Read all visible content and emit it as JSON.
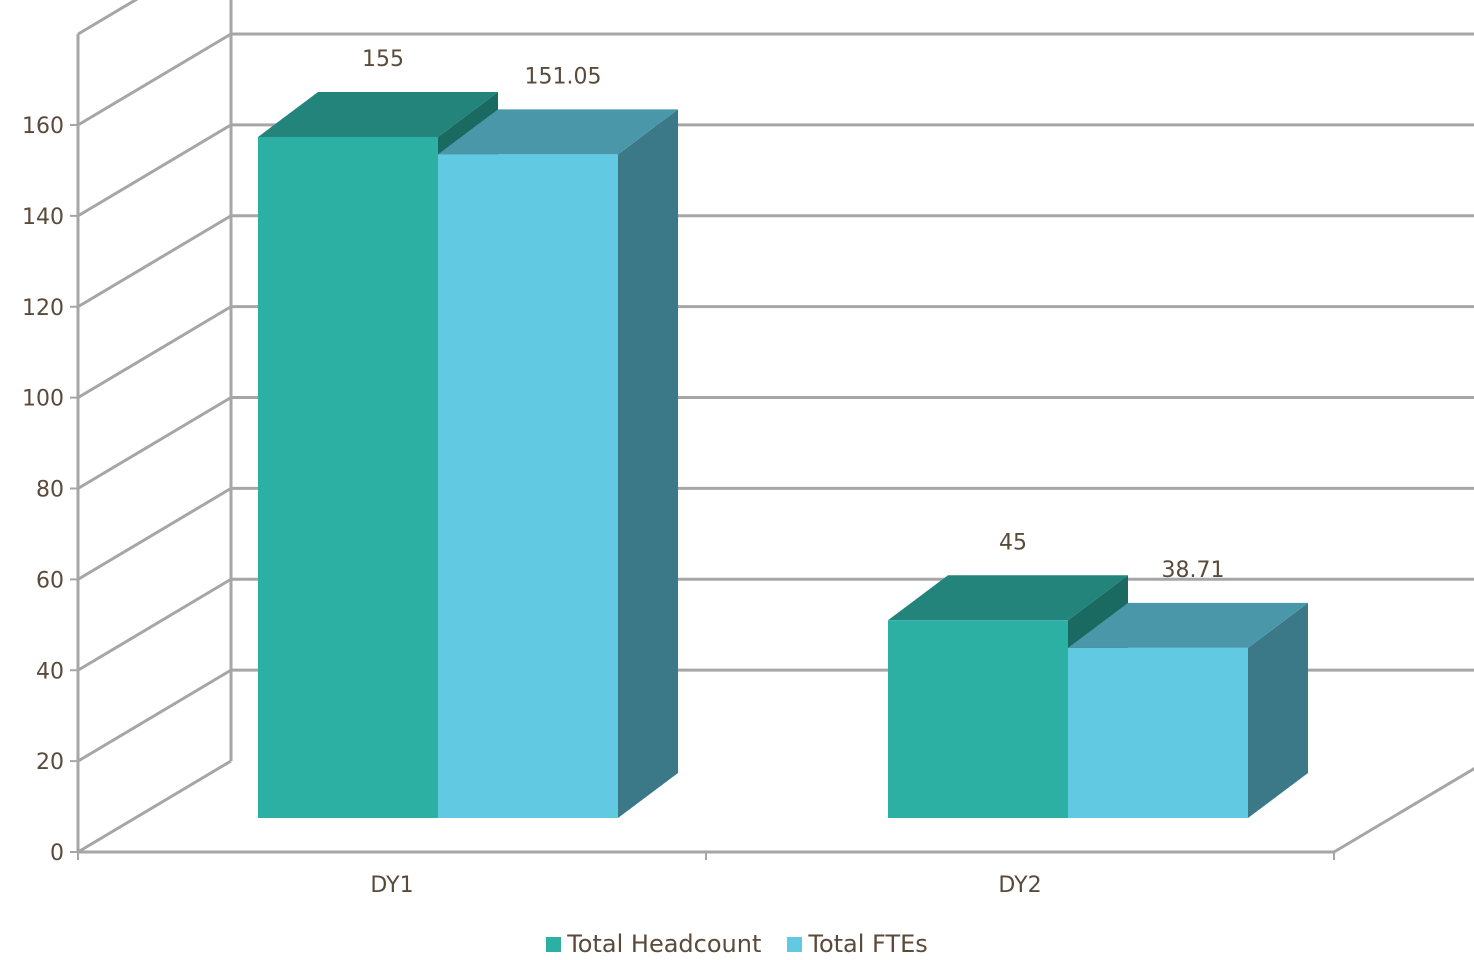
{
  "chart_data": {
    "type": "bar",
    "style": "3d-clustered-column",
    "categories": [
      "DY1",
      "DY2"
    ],
    "series": [
      {
        "name": "Total Headcount",
        "values": [
          155,
          45
        ],
        "labels": [
          "155",
          "45"
        ],
        "color": "#2db0a4"
      },
      {
        "name": "Total FTEs",
        "values": [
          151.05,
          38.71
        ],
        "labels": [
          "151.05",
          "38.71"
        ],
        "color": "#62c9e2"
      }
    ],
    "yticks": [
      "0",
      "20",
      "40",
      "60",
      "80",
      "100",
      "120",
      "140",
      "160"
    ],
    "ylim": [
      0,
      160
    ],
    "grid": true,
    "legend": "bottom",
    "title": "",
    "xlabel": "",
    "ylabel": ""
  }
}
